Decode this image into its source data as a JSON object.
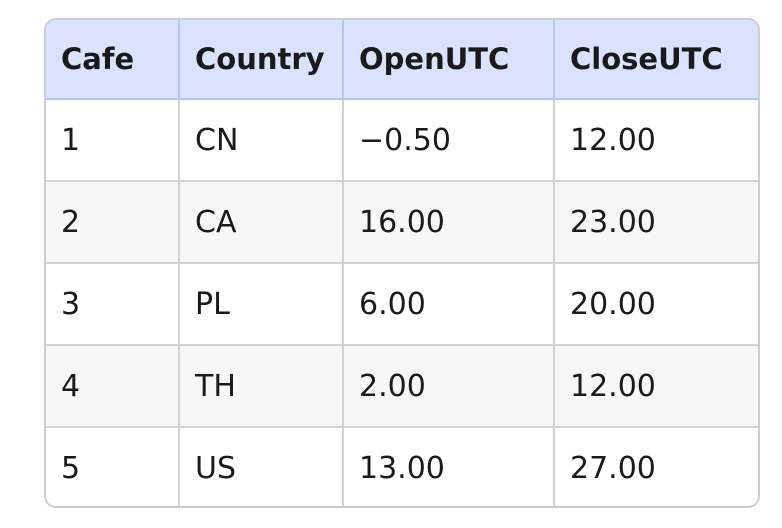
{
  "table": {
    "headers": [
      "Cafe",
      "Country",
      "OpenUTC",
      "CloseUTC"
    ],
    "rows": [
      [
        "1",
        "CN",
        "−0.50",
        "12.00"
      ],
      [
        "2",
        "CA",
        "16.00",
        "23.00"
      ],
      [
        "3",
        "PL",
        "6.00",
        "20.00"
      ],
      [
        "4",
        "TH",
        "2.00",
        "12.00"
      ],
      [
        "5",
        "US",
        "13.00",
        "27.00"
      ]
    ]
  },
  "colors": {
    "header_bg": "#d9e3fd",
    "stripe_bg": "#f7f7f7",
    "border": "#d2d2d2"
  }
}
